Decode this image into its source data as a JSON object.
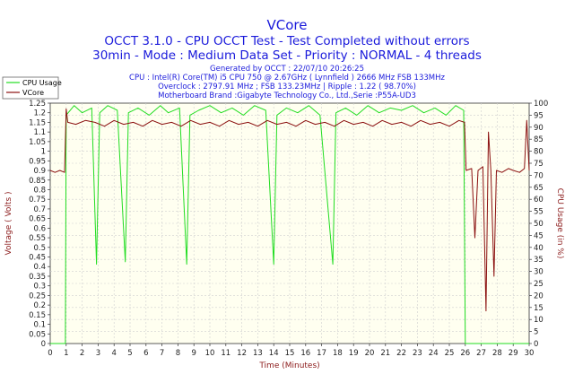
{
  "chart_data": {
    "type": "line",
    "title": "VCore",
    "subtitle1": "OCCT 3.1.0 - CPU OCCT Test - Test Completed without errors",
    "subtitle2": "30min - Mode : Medium Data Set - Priority : NORMAL - 4 threads",
    "info_lines": [
      "Generated by OCCT : 22/07/10 20:26:25",
      "CPU : Intel(R) Core(TM) i5 CPU 750 @ 2.67GHz ( Lynnfield ) 2666 MHz FSB 133MHz",
      "Overclock : 2797.91 MHz ; FSB 133.23MHz | Ripple : 1.22 ( 98.70%)",
      "Motherboard Brand :Gigabyte Technology Co., Ltd.,Serie :P55A-UD3"
    ],
    "xlabel": "Time (Minutes)",
    "ylabel_left": "Voltage ( Volts )",
    "ylabel_right": "CPU Usage (in %)",
    "xlim": [
      0,
      30
    ],
    "ylim_left": [
      0,
      1.25
    ],
    "ylim_right": [
      0,
      100
    ],
    "x_ticks": [
      "0",
      "1",
      "2",
      "3",
      "4",
      "5",
      "6",
      "7",
      "8",
      "9",
      "10",
      "11",
      "12",
      "13",
      "14",
      "15",
      "16",
      "17",
      "18",
      "19",
      "20",
      "21",
      "22",
      "23",
      "24",
      "25",
      "26",
      "27",
      "28",
      "29",
      "30"
    ],
    "y_ticks_left": [
      "0",
      "0.05",
      "0.1",
      "0.15",
      "0.2",
      "0.25",
      "0.3",
      "0.35",
      "0.4",
      "0.45",
      "0.5",
      "0.55",
      "0.6",
      "0.65",
      "0.7",
      "0.75",
      "0.8",
      "0.85",
      "0.9",
      "0.95",
      "1",
      "1.05",
      "1.1",
      "1.15",
      "1.2",
      "1.25"
    ],
    "y_ticks_right": [
      "0",
      "5",
      "10",
      "15",
      "20",
      "25",
      "30",
      "35",
      "40",
      "45",
      "50",
      "55",
      "60",
      "65",
      "70",
      "75",
      "80",
      "85",
      "90",
      "95",
      "100"
    ],
    "legend_position": "top-left",
    "background_color": "#fffff0",
    "series": [
      {
        "name": "CPU Usage",
        "axis": "right",
        "color": "#22dd22",
        "points": [
          [
            0,
            0
          ],
          [
            0.95,
            0
          ],
          [
            1.0,
            95
          ],
          [
            1.5,
            99
          ],
          [
            2.0,
            96
          ],
          [
            2.6,
            98
          ],
          [
            2.9,
            33
          ],
          [
            3.1,
            96
          ],
          [
            3.6,
            99
          ],
          [
            4.2,
            97
          ],
          [
            4.7,
            34
          ],
          [
            4.9,
            96
          ],
          [
            5.5,
            98
          ],
          [
            6.2,
            95
          ],
          [
            6.9,
            99
          ],
          [
            7.4,
            96
          ],
          [
            8.1,
            98
          ],
          [
            8.55,
            33
          ],
          [
            8.75,
            95
          ],
          [
            9.3,
            97
          ],
          [
            10.0,
            99
          ],
          [
            10.7,
            96
          ],
          [
            11.4,
            98
          ],
          [
            12.1,
            95
          ],
          [
            12.8,
            99
          ],
          [
            13.5,
            97
          ],
          [
            14.0,
            33
          ],
          [
            14.2,
            95
          ],
          [
            14.8,
            98
          ],
          [
            15.5,
            96
          ],
          [
            16.2,
            99
          ],
          [
            16.9,
            95
          ],
          [
            17.7,
            33
          ],
          [
            17.9,
            96
          ],
          [
            18.5,
            98
          ],
          [
            19.2,
            95
          ],
          [
            19.9,
            99
          ],
          [
            20.6,
            96
          ],
          [
            21.3,
            98
          ],
          [
            22.0,
            97
          ],
          [
            22.7,
            99
          ],
          [
            23.4,
            96
          ],
          [
            24.1,
            98
          ],
          [
            24.8,
            95
          ],
          [
            25.4,
            99
          ],
          [
            25.9,
            97
          ],
          [
            26.0,
            0
          ],
          [
            30,
            0
          ]
        ]
      },
      {
        "name": "VCore",
        "axis": "left",
        "color": "#8b1010",
        "points": [
          [
            0,
            0.9
          ],
          [
            0.3,
            0.89
          ],
          [
            0.6,
            0.9
          ],
          [
            0.9,
            0.89
          ],
          [
            1.0,
            1.22
          ],
          [
            1.1,
            1.15
          ],
          [
            1.6,
            1.14
          ],
          [
            2.2,
            1.16
          ],
          [
            2.8,
            1.15
          ],
          [
            3.4,
            1.13
          ],
          [
            4.0,
            1.16
          ],
          [
            4.6,
            1.14
          ],
          [
            5.2,
            1.15
          ],
          [
            5.8,
            1.13
          ],
          [
            6.4,
            1.16
          ],
          [
            7.0,
            1.14
          ],
          [
            7.6,
            1.15
          ],
          [
            8.2,
            1.13
          ],
          [
            8.8,
            1.16
          ],
          [
            9.4,
            1.14
          ],
          [
            10.0,
            1.15
          ],
          [
            10.6,
            1.13
          ],
          [
            11.2,
            1.16
          ],
          [
            11.8,
            1.14
          ],
          [
            12.4,
            1.15
          ],
          [
            13.0,
            1.13
          ],
          [
            13.6,
            1.16
          ],
          [
            14.2,
            1.14
          ],
          [
            14.8,
            1.15
          ],
          [
            15.4,
            1.13
          ],
          [
            16.0,
            1.16
          ],
          [
            16.6,
            1.14
          ],
          [
            17.2,
            1.15
          ],
          [
            17.8,
            1.13
          ],
          [
            18.4,
            1.16
          ],
          [
            19.0,
            1.14
          ],
          [
            19.6,
            1.15
          ],
          [
            20.2,
            1.13
          ],
          [
            20.8,
            1.16
          ],
          [
            21.4,
            1.14
          ],
          [
            22.0,
            1.15
          ],
          [
            22.6,
            1.13
          ],
          [
            23.2,
            1.16
          ],
          [
            23.8,
            1.14
          ],
          [
            24.4,
            1.15
          ],
          [
            25.0,
            1.13
          ],
          [
            25.6,
            1.16
          ],
          [
            25.95,
            1.15
          ],
          [
            26.05,
            0.9
          ],
          [
            26.4,
            0.91
          ],
          [
            26.6,
            0.55
          ],
          [
            26.8,
            0.9
          ],
          [
            27.1,
            0.92
          ],
          [
            27.3,
            0.17
          ],
          [
            27.45,
            1.1
          ],
          [
            27.6,
            0.9
          ],
          [
            27.8,
            0.35
          ],
          [
            27.95,
            0.9
          ],
          [
            28.3,
            0.89
          ],
          [
            28.7,
            0.91
          ],
          [
            29.0,
            0.9
          ],
          [
            29.4,
            0.89
          ],
          [
            29.7,
            0.91
          ],
          [
            29.85,
            1.16
          ],
          [
            30,
            0.9
          ]
        ]
      }
    ]
  }
}
